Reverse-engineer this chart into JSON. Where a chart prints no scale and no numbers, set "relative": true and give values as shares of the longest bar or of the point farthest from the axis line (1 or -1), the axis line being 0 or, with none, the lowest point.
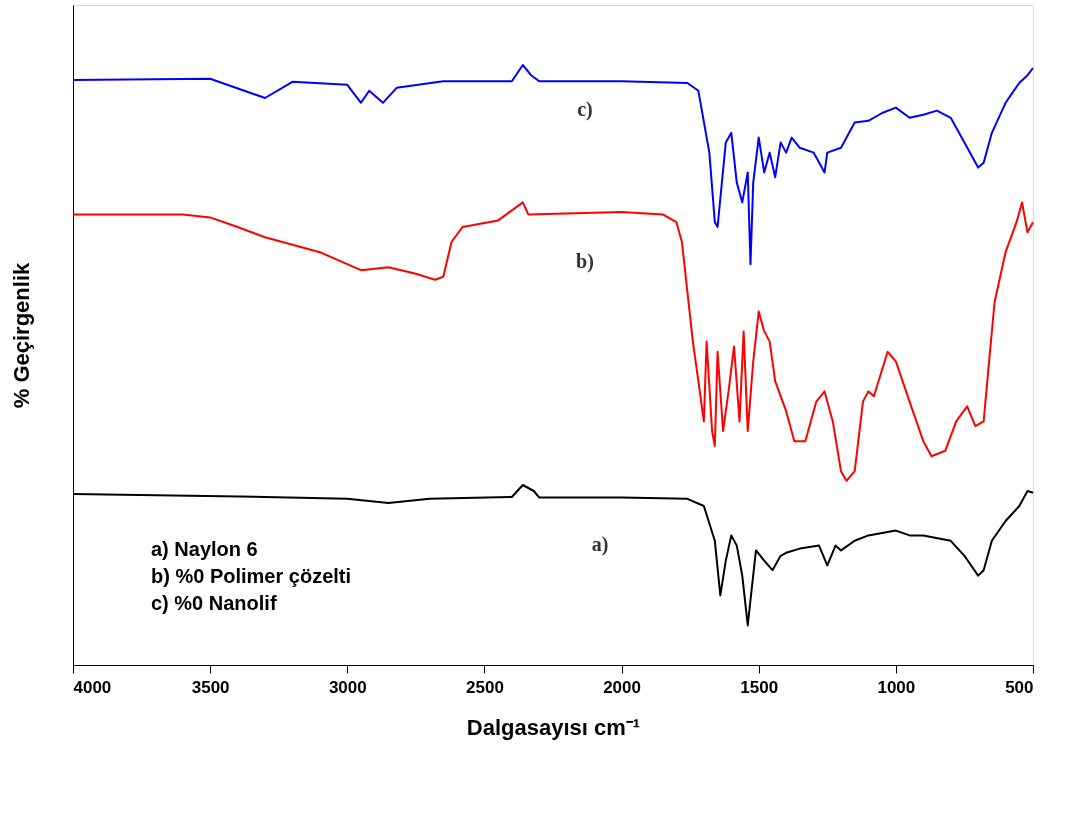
{
  "chart_data": {
    "type": "line",
    "relative": true,
    "xlabel": "Dalgasayısı cm⁻¹",
    "ylabel": "% Geçirgenlik",
    "xlim": [
      4000,
      500
    ],
    "xticks": [
      4000,
      3500,
      3000,
      2500,
      2000,
      1500,
      1000,
      500
    ],
    "grid": false,
    "line_style": "solid",
    "annotations": [
      "c)",
      "b)",
      "a)",
      "a)  Naylon 6",
      "b)  %0 Polimer çözelti",
      "c)  %0 Nanolif"
    ],
    "series": [
      {
        "color": "#0000ff",
        "x": [
          4000,
          3500,
          3300,
          3200,
          3000,
          2950,
          2920,
          2870,
          2820,
          2650,
          2400,
          2360,
          2330,
          2300,
          2000,
          1760,
          1720,
          1680,
          1660,
          1650,
          1620,
          1600,
          1580,
          1560,
          1540,
          1530,
          1520,
          1500,
          1480,
          1460,
          1440,
          1420,
          1400,
          1380,
          1350,
          1300,
          1260,
          1250,
          1200,
          1150,
          1100,
          1050,
          1000,
          950,
          900,
          850,
          800,
          750,
          700,
          680,
          650,
          600,
          550,
          520,
          500
        ],
        "values": [
          0.975,
          0.977,
          0.945,
          0.972,
          0.967,
          0.937,
          0.957,
          0.937,
          0.962,
          0.973,
          0.973,
          1.0,
          0.983,
          0.973,
          0.973,
          0.97,
          0.957,
          0.854,
          0.738,
          0.73,
          0.871,
          0.887,
          0.804,
          0.771,
          0.821,
          0.668,
          0.804,
          0.879,
          0.821,
          0.854,
          0.813,
          0.871,
          0.854,
          0.879,
          0.862,
          0.854,
          0.821,
          0.854,
          0.862,
          0.904,
          0.907,
          0.92,
          0.929,
          0.912,
          0.917,
          0.924,
          0.912,
          0.871,
          0.829,
          0.837,
          0.887,
          0.937,
          0.97,
          0.983,
          0.995
        ]
      },
      {
        "color": "#ff0000",
        "x": [
          4000,
          3600,
          3500,
          3400,
          3300,
          3100,
          2950,
          2850,
          2750,
          2680,
          2650,
          2620,
          2580,
          2450,
          2360,
          2340,
          2000,
          1850,
          1800,
          1780,
          1760,
          1740,
          1720,
          1700,
          1690,
          1670,
          1660,
          1650,
          1630,
          1610,
          1590,
          1570,
          1555,
          1540,
          1520,
          1500,
          1480,
          1460,
          1440,
          1400,
          1370,
          1330,
          1290,
          1260,
          1230,
          1200,
          1180,
          1150,
          1120,
          1100,
          1080,
          1030,
          1000,
          950,
          900,
          870,
          820,
          780,
          740,
          710,
          680,
          660,
          640,
          600,
          560,
          540,
          520,
          500
        ],
        "values": [
          0.751,
          0.751,
          0.746,
          0.73,
          0.713,
          0.688,
          0.658,
          0.663,
          0.652,
          0.642,
          0.647,
          0.705,
          0.73,
          0.741,
          0.771,
          0.751,
          0.755,
          0.751,
          0.738,
          0.705,
          0.622,
          0.539,
          0.473,
          0.406,
          0.539,
          0.39,
          0.365,
          0.522,
          0.39,
          0.456,
          0.531,
          0.406,
          0.556,
          0.39,
          0.506,
          0.589,
          0.556,
          0.539,
          0.473,
          0.423,
          0.373,
          0.373,
          0.439,
          0.456,
          0.406,
          0.323,
          0.307,
          0.323,
          0.439,
          0.456,
          0.448,
          0.522,
          0.506,
          0.439,
          0.373,
          0.348,
          0.357,
          0.406,
          0.431,
          0.398,
          0.406,
          0.506,
          0.605,
          0.688,
          0.738,
          0.771,
          0.721,
          0.738
        ]
      },
      {
        "color": "#000000",
        "x": [
          4000,
          3300,
          3000,
          2850,
          2700,
          2400,
          2360,
          2320,
          2300,
          2000,
          1760,
          1700,
          1660,
          1640,
          1620,
          1600,
          1580,
          1560,
          1540,
          1530,
          1510,
          1480,
          1450,
          1420,
          1400,
          1350,
          1280,
          1250,
          1220,
          1200,
          1150,
          1100,
          1000,
          950,
          900,
          800,
          750,
          700,
          680,
          650,
          600,
          550,
          520,
          500
        ],
        "values": [
          0.285,
          0.28,
          0.277,
          0.27,
          0.277,
          0.28,
          0.3,
          0.29,
          0.279,
          0.279,
          0.277,
          0.265,
          0.207,
          0.116,
          0.174,
          0.216,
          0.199,
          0.149,
          0.066,
          0.108,
          0.191,
          0.174,
          0.158,
          0.182,
          0.187,
          0.194,
          0.199,
          0.166,
          0.199,
          0.191,
          0.207,
          0.216,
          0.224,
          0.216,
          0.216,
          0.207,
          0.182,
          0.149,
          0.158,
          0.207,
          0.24,
          0.265,
          0.29,
          0.287
        ]
      }
    ]
  }
}
